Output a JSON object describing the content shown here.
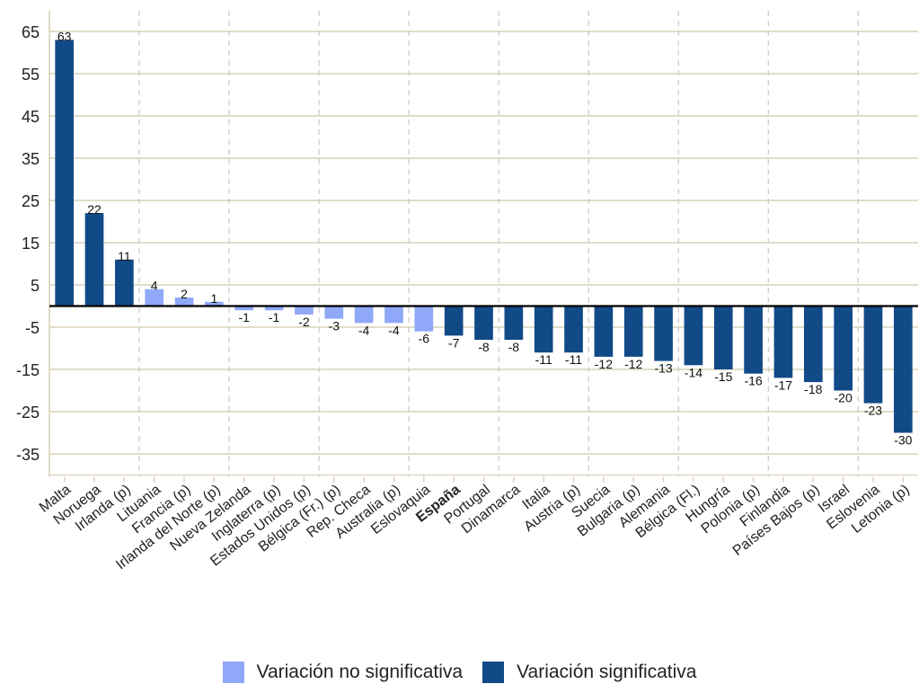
{
  "chart_data": {
    "type": "bar",
    "categories": [
      "Malta",
      "Noruega",
      "Irlanda (p)",
      "Lituania",
      "Francia (p)",
      "Irlanda del Norte (p)",
      "Nueva Zelanda",
      "Inglaterra (p)",
      "Estados Unidos (p)",
      "Bélgica (Fr.) (p)",
      "Rep. Checa",
      "Australia (p)",
      "Eslovaquia",
      "España",
      "Portugal",
      "Dinamarca",
      "Italia",
      "Austria (p)",
      "Suecia",
      "Bulgaria (p)",
      "Alemania",
      "Bélgica (Fl.)",
      "Hungría",
      "Polonia (p)",
      "Finlandia",
      "Países Bajos (p)",
      "Israel",
      "Eslovenia",
      "Letonia (p)"
    ],
    "values": [
      63,
      22,
      11,
      4,
      2,
      1,
      -1,
      -1,
      -2,
      -3,
      -4,
      -4,
      -6,
      -7,
      -8,
      -8,
      -11,
      -11,
      -12,
      -12,
      -13,
      -14,
      -15,
      -16,
      -17,
      -18,
      -20,
      -23,
      -30
    ],
    "significant": [
      true,
      true,
      true,
      false,
      false,
      false,
      false,
      false,
      false,
      false,
      false,
      false,
      false,
      true,
      true,
      true,
      true,
      true,
      true,
      true,
      true,
      true,
      true,
      true,
      true,
      true,
      true,
      true,
      true
    ],
    "highlight_category": "España",
    "yticks": [
      65,
      55,
      45,
      35,
      25,
      15,
      5,
      -5,
      -15,
      -25,
      -35
    ],
    "ylim": [
      -40,
      68
    ],
    "grid": true,
    "legend_placement": "bottom",
    "legend": {
      "non_significant": "Variación no significativa",
      "significant": "Variación significativa"
    },
    "colors": {
      "non_significant": "#8FA8F7",
      "significant": "#124A88",
      "grid": "#D9D0B8",
      "vgrid": "#C8C8C8",
      "zero_line": "#000000"
    },
    "title": "",
    "xlabel": "",
    "ylabel": ""
  }
}
